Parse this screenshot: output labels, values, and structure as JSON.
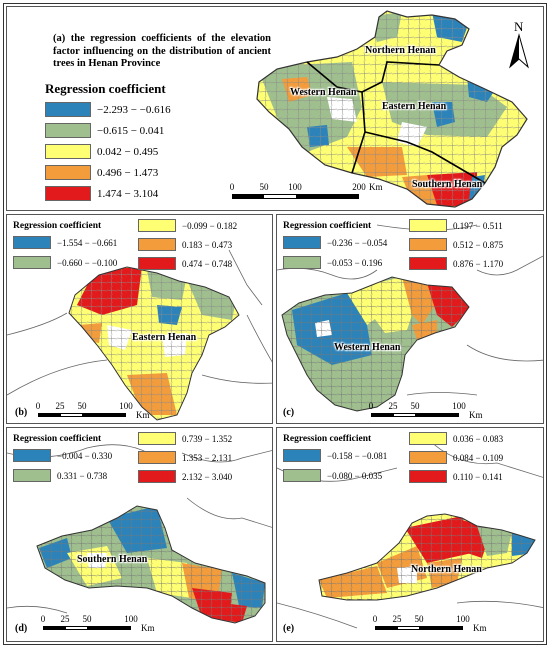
{
  "caption": "(a) the regression coefficients of the elevation factor influencing on the distribution of ancient trees in Henan Province",
  "north_arrow_label": "N",
  "legend_title": "Regression coefficient",
  "panels": {
    "a": {
      "letter": "",
      "legend": [
        "−2.293 − −0.616",
        "−0.615 − 0.041",
        "0.042 − 0.495",
        "0.496 − 1.473",
        "1.474 − 3.104"
      ],
      "regions": {
        "northern": "Northern Henan",
        "western": "Western Henan",
        "eastern": "Eastern Henan",
        "southern": "Southern Henan"
      },
      "scale_ticks": [
        "0",
        "50",
        "100",
        "200"
      ],
      "scale_unit": "Km"
    },
    "b": {
      "letter": "(b)",
      "legend": [
        "−1.554 − −0.661",
        "−0.660 − −0.100",
        "−0.099 − 0.182",
        "0.183 − 0.473",
        "0.474 − 0.748"
      ],
      "region": "Eastern Henan",
      "scale_ticks": [
        "0",
        "25",
        "50",
        "100"
      ],
      "scale_unit": "Km"
    },
    "c": {
      "letter": "(c)",
      "legend": [
        "−0.236 − −0.054",
        "−0.053 − 0.196",
        "0.197 − 0.511",
        "0.512 − 0.875",
        "0.876 − 1.170"
      ],
      "region": "Western Henan",
      "scale_ticks": [
        "0",
        "25",
        "50",
        "100"
      ],
      "scale_unit": "Km"
    },
    "d": {
      "letter": "(d)",
      "legend": [
        "−0.004 − 0.330",
        "0.331 − 0.738",
        "0.739 − 1.352",
        "1.353 − 2.131",
        "2.132 − 3.040"
      ],
      "region": "Southern Henan",
      "scale_ticks": [
        "0",
        "25",
        "50",
        "100"
      ],
      "scale_unit": "Km"
    },
    "e": {
      "letter": "(e)",
      "legend": [
        "−0.158 − −0.081",
        "−0.080 − 0.035",
        "0.036 − 0.083",
        "0.084 − 0.109",
        "0.110 − 0.141"
      ],
      "region": "Northern Henan",
      "scale_ticks": [
        "0",
        "25",
        "50",
        "100"
      ],
      "scale_unit": "Km"
    }
  },
  "class_colors": [
    "#2b83ba",
    "#9fbf8e",
    "#ffff73",
    "#f39c3c",
    "#e31a1c"
  ],
  "boundary_color": "#7f7f7f"
}
